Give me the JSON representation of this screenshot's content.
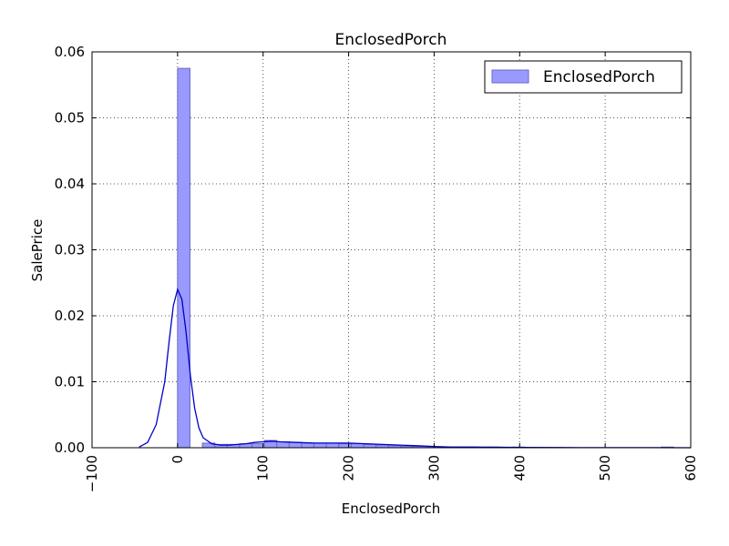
{
  "chart_data": {
    "type": "bar",
    "title": "EnclosedPorch",
    "xlabel": "EnclosedPorch",
    "ylabel": "SalePrice",
    "xlim": [
      -100,
      600
    ],
    "ylim": [
      0,
      0.06
    ],
    "xticks": [
      -100,
      0,
      100,
      200,
      300,
      400,
      500,
      600
    ],
    "xtick_labels": [
      "−100",
      "0",
      "100",
      "200",
      "300",
      "400",
      "500",
      "600"
    ],
    "yticks": [
      0.0,
      0.01,
      0.02,
      0.03,
      0.04,
      0.05,
      0.06
    ],
    "ytick_labels": [
      "0.00",
      "0.01",
      "0.02",
      "0.03",
      "0.04",
      "0.05",
      "0.06"
    ],
    "grid": true,
    "legend": {
      "position": "top-right",
      "entries": [
        "EnclosedPorch"
      ]
    },
    "colors": {
      "hist_fill": "#9999ff",
      "hist_edge": "#6a6ac8",
      "kde_line": "#0000cc",
      "grid": "#555555"
    },
    "histogram": {
      "bin_edges": [
        0,
        14.5,
        29,
        43.5,
        58,
        72.5,
        87,
        101.5,
        116,
        130.5,
        145,
        159.5,
        174,
        188.5,
        203,
        217.5,
        232,
        246.5,
        261,
        275.5,
        290,
        304.5,
        319,
        333.5,
        348,
        362.5,
        377,
        391.5,
        406,
        420.5,
        435,
        449.5,
        464,
        478.5,
        493,
        507.5,
        522,
        536.5,
        551,
        565.5,
        580
      ],
      "values": [
        0.0575,
        0.0,
        0.0007,
        0.0005,
        0.0005,
        0.0006,
        0.0006,
        0.0011,
        0.0009,
        0.0008,
        0.0007,
        0.0007,
        0.0007,
        0.0006,
        0.0006,
        0.0005,
        0.0004,
        0.0003,
        0.0002,
        0.0002,
        0.0001,
        0.0001,
        0.0001,
        0.0001,
        0.0,
        0.0001,
        0.0,
        0.0001,
        0.0,
        0.0,
        0.0,
        0.0,
        0.0,
        0.0,
        0.0,
        0.0,
        0.0,
        0.0,
        0.0,
        0.0001
      ]
    },
    "kde": {
      "name": "",
      "x": [
        -45,
        -35,
        -25,
        -15,
        -10,
        -5,
        0,
        5,
        10,
        15,
        20,
        25,
        30,
        40,
        50,
        60,
        70,
        80,
        90,
        100,
        110,
        120,
        140,
        160,
        180,
        200,
        220,
        240,
        260,
        280,
        300,
        320,
        350,
        400,
        450,
        500,
        550,
        600
      ],
      "y": [
        0.0001,
        0.0008,
        0.0035,
        0.01,
        0.016,
        0.0215,
        0.024,
        0.0225,
        0.0175,
        0.011,
        0.006,
        0.003,
        0.0015,
        0.0006,
        0.0004,
        0.0004,
        0.0005,
        0.0006,
        0.0008,
        0.0009,
        0.001,
        0.0009,
        0.0008,
        0.0007,
        0.0007,
        0.0007,
        0.0006,
        0.0005,
        0.0004,
        0.0003,
        0.0002,
        0.0001,
        0.0001,
        5e-05,
        3e-05,
        2e-05,
        1e-05,
        0.0
      ]
    }
  }
}
